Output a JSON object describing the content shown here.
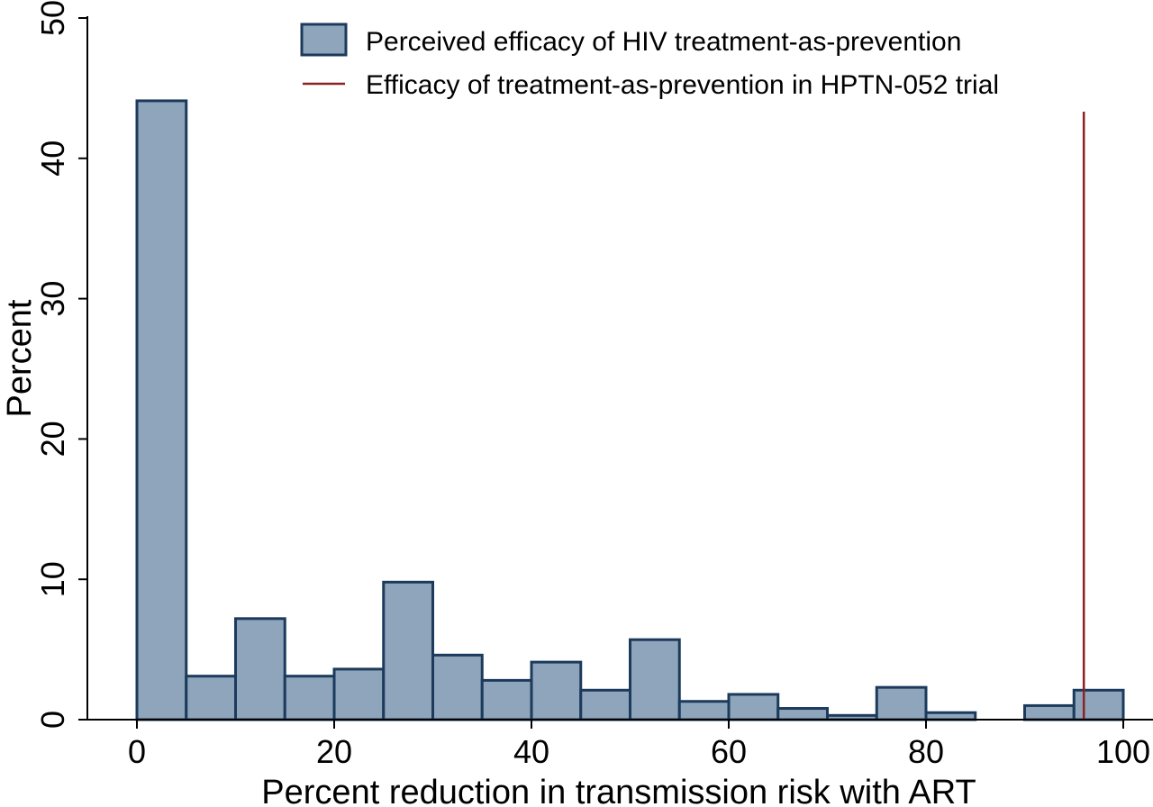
{
  "chart_data": {
    "type": "bar",
    "bin_width": 5,
    "bins": [
      0,
      5,
      10,
      15,
      20,
      25,
      30,
      35,
      40,
      45,
      50,
      55,
      60,
      65,
      70,
      75,
      80,
      85,
      90,
      95
    ],
    "values": [
      44.1,
      3.1,
      7.2,
      3.1,
      3.6,
      9.8,
      4.6,
      2.8,
      4.1,
      2.1,
      5.7,
      1.3,
      1.8,
      0.8,
      0.3,
      2.3,
      0.5,
      0.0,
      1.0,
      2.1
    ],
    "reference_line": {
      "x": 96,
      "name": "Efficacy of treatment-as-prevention in HPTN-052 trial",
      "color": "#8b2323"
    },
    "series_name": "Perceived efficacy of HIV treatment-as-prevention",
    "xlabel": "Percent reduction in transmission risk with ART",
    "ylabel": "Percent",
    "xlim": [
      -5,
      101
    ],
    "ylim": [
      0,
      50
    ],
    "xticks": [
      0,
      20,
      40,
      60,
      80,
      100
    ],
    "yticks": [
      0,
      10,
      20,
      30,
      40,
      50
    ],
    "xtick_labels": [
      "0",
      "20",
      "40",
      "60",
      "80",
      "100"
    ],
    "ytick_labels": [
      "0",
      "10",
      "20",
      "30",
      "40",
      "50"
    ],
    "grid": false,
    "legend_position": "top-right",
    "colors": {
      "bar_fill": "#8fa5bb",
      "bar_stroke": "#1b3a5c",
      "axis": "#000000"
    }
  }
}
